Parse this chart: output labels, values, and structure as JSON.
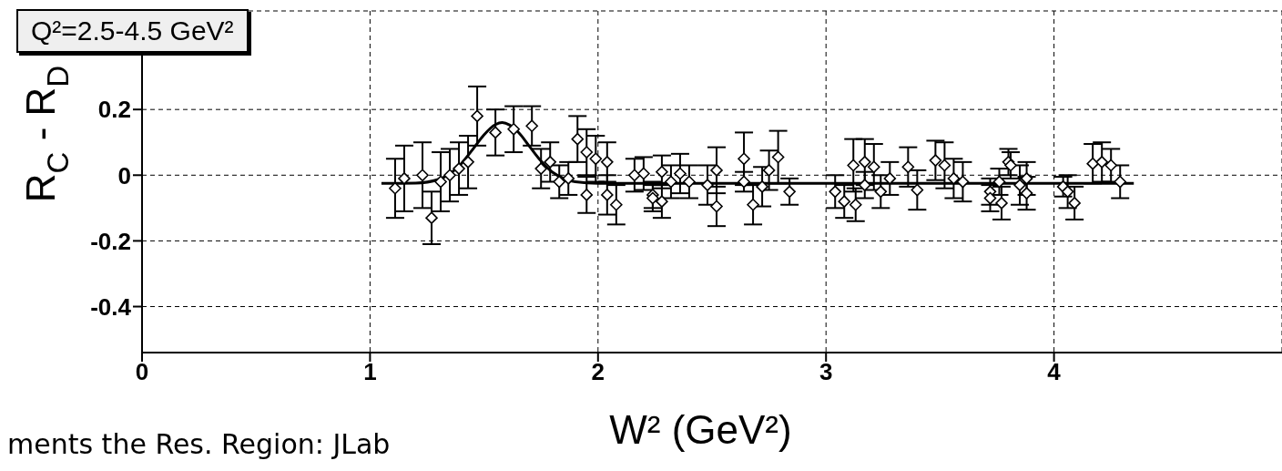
{
  "chart_data": {
    "type": "scatter",
    "title": "Q²=2.5-4.5 GeV²",
    "xlabel": "W² (GeV²)",
    "ylabel": "R$_{C}$ - R$_{D}$",
    "annotations": [
      "ments the Res. Region: JLab"
    ],
    "xlim": [
      0,
      5
    ],
    "xticks": [
      0,
      1,
      2,
      3,
      4
    ],
    "ylim": [
      -0.54,
      0.5
    ],
    "yticks": [
      -0.4,
      -0.2,
      0,
      0.2
    ],
    "grid": true,
    "legend": false,
    "series": [
      {
        "color": "#000000",
        "marker": "diamond",
        "x": [
          1.11,
          1.15,
          1.23,
          1.27,
          1.31,
          1.35,
          1.39,
          1.43,
          1.47,
          1.55,
          1.63,
          1.71,
          1.75,
          1.79,
          1.83,
          1.87,
          1.91,
          1.95,
          1.95,
          1.99,
          2.04,
          2.04,
          2.08,
          2.16,
          2.2,
          2.24,
          2.24,
          2.28,
          2.28,
          2.32,
          2.36,
          2.4,
          2.48,
          2.52,
          2.52,
          2.64,
          2.64,
          2.68,
          2.72,
          2.75,
          2.79,
          2.84,
          3.04,
          3.08,
          3.12,
          3.13,
          3.17,
          3.17,
          3.21,
          3.24,
          3.28,
          3.36,
          3.4,
          3.48,
          3.52,
          3.56,
          3.6,
          3.72,
          3.72,
          3.76,
          3.77,
          3.8,
          3.81,
          3.85,
          3.88,
          3.88,
          4.04,
          4.06,
          4.09,
          4.17,
          4.21,
          4.25,
          4.29
        ],
        "values": [
          -0.04,
          -0.01,
          0,
          -0.13,
          -0.02,
          0,
          0.02,
          0.04,
          0.18,
          0.13,
          0.14,
          0.15,
          0.02,
          0.04,
          -0.02,
          -0.01,
          0.11,
          0.07,
          -0.06,
          0.05,
          0.04,
          -0.06,
          -0.09,
          0,
          0.005,
          -0.06,
          -0.07,
          -0.08,
          0.01,
          -0.02,
          0.005,
          -0.02,
          -0.03,
          0.015,
          -0.095,
          0.05,
          -0.02,
          -0.09,
          -0.035,
          0.015,
          0.055,
          -0.05,
          -0.05,
          -0.08,
          0.03,
          -0.09,
          0.04,
          -0.03,
          0.025,
          -0.05,
          -0.01,
          0.025,
          -0.045,
          0.045,
          0.03,
          -0.01,
          -0.02,
          -0.05,
          -0.07,
          -0.02,
          -0.085,
          0.04,
          0.03,
          -0.03,
          -0.01,
          -0.055,
          -0.035,
          -0.05,
          -0.085,
          0.035,
          0.04,
          0.03,
          -0.02
        ],
        "errors": [
          0.09,
          0.1,
          0.1,
          0.08,
          0.09,
          0.08,
          0.08,
          0.08,
          0.09,
          0.07,
          0.07,
          0.06,
          0.06,
          0.06,
          0.05,
          0.05,
          0.07,
          0.07,
          0.055,
          0.07,
          0.06,
          0.06,
          0.06,
          0.05,
          0.05,
          0.04,
          0.04,
          0.05,
          0.05,
          0.05,
          0.06,
          0.05,
          0.06,
          0.07,
          0.06,
          0.08,
          0.03,
          0.06,
          0.06,
          0.06,
          0.08,
          0.04,
          0.05,
          0.05,
          0.08,
          0.05,
          0.07,
          0.04,
          0.07,
          0.05,
          0.05,
          0.06,
          0.06,
          0.06,
          0.07,
          0.06,
          0.06,
          0.04,
          0.04,
          0.04,
          0.05,
          0.04,
          0.04,
          0.06,
          0.05,
          0.05,
          0.03,
          0.05,
          0.05,
          0.06,
          0.06,
          0.05,
          0.05
        ]
      },
      {
        "type": "line",
        "color": "#000000",
        "line_style": "solid",
        "x": [
          1.05,
          1.2,
          1.3,
          1.35,
          1.4,
          1.45,
          1.5,
          1.55,
          1.58,
          1.65,
          1.7,
          1.75,
          1.8,
          1.85,
          1.9,
          2.0,
          4.35
        ],
        "values": [
          -0.025,
          -0.024,
          -0.013,
          0.004,
          0.035,
          0.078,
          0.123,
          0.154,
          0.16,
          0.131,
          0.087,
          0.043,
          0.009,
          -0.01,
          -0.02,
          -0.025,
          -0.025
        ]
      }
    ]
  }
}
